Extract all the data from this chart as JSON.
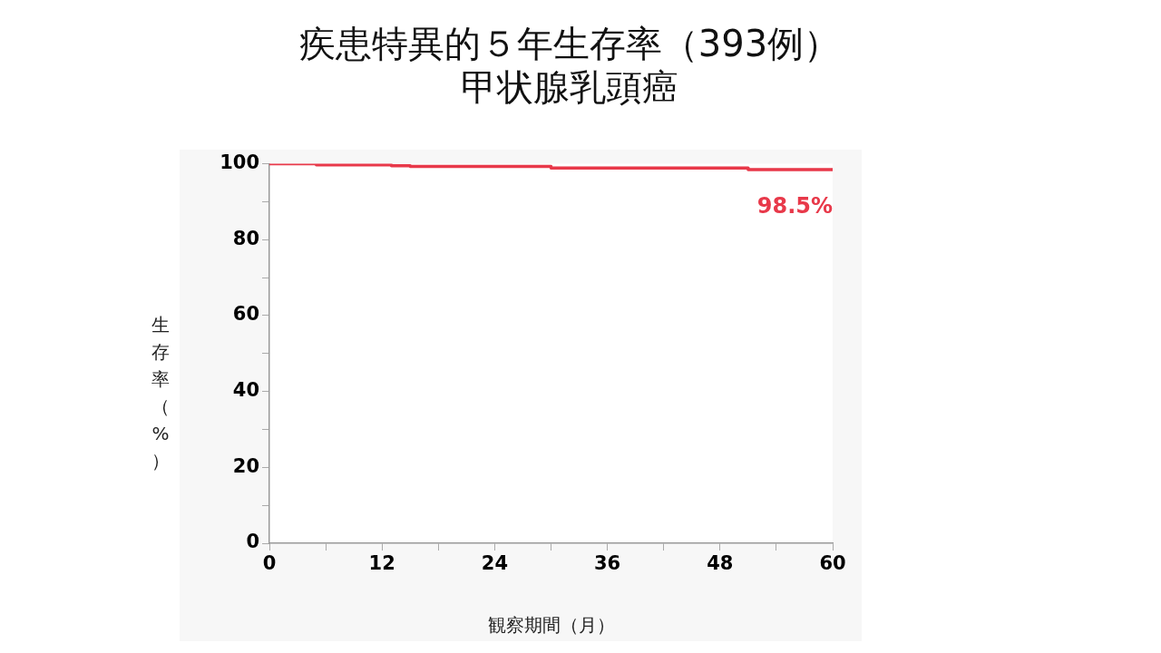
{
  "chart_data": {
    "type": "step",
    "title": "疾患特異的５年生存率（393例）",
    "subtitle": "甲状腺乳頭癌",
    "xlabel": "観察期間（月）",
    "ylabel": "生存率（%）",
    "x": [
      0,
      5,
      13,
      15,
      30,
      51,
      60
    ],
    "series": [
      {
        "color": "#e8394a",
        "values": [
          100,
          99.7,
          99.5,
          99.3,
          98.9,
          98.5,
          98.5
        ]
      }
    ],
    "xlim": [
      0,
      60
    ],
    "xticks": [
      0,
      {
        "value": 6,
        "label": null
      },
      12,
      {
        "value": 18,
        "label": null
      },
      24,
      {
        "value": 30,
        "label": null
      },
      36,
      {
        "value": 42,
        "label": null
      },
      48,
      {
        "value": 54,
        "label": null
      },
      60
    ],
    "ylim": [
      0,
      100
    ],
    "yticks": [
      0,
      {
        "value": 10,
        "label": null
      },
      20,
      {
        "value": 30,
        "label": null
      },
      40,
      {
        "value": 50,
        "label": null
      },
      60,
      {
        "value": 70,
        "label": null
      },
      80,
      {
        "value": 90,
        "label": null
      },
      100
    ],
    "annotations": [
      {
        "text": "98.5%",
        "x": 60,
        "y": 98.5
      }
    ],
    "grid": false,
    "legend": false,
    "marker": "none",
    "line_style": "solid"
  }
}
